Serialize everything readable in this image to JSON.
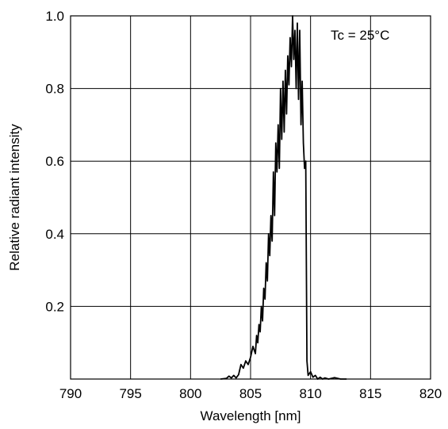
{
  "chart_data": {
    "type": "line",
    "title": "",
    "xlabel": "Wavelength [nm]",
    "ylabel": "Relative radiant intensity",
    "annotation": "Tc = 25°C",
    "xlim": [
      790,
      820
    ],
    "ylim": [
      0,
      1.0
    ],
    "xticks": [
      790,
      795,
      800,
      805,
      810,
      815,
      820
    ],
    "yticks": [
      0.2,
      0.4,
      0.6,
      0.8,
      1.0
    ],
    "xtick_labels": [
      "790",
      "795",
      "800",
      "805",
      "810",
      "815",
      "820"
    ],
    "ytick_labels": [
      "0.2",
      "0.4",
      "0.6",
      "0.8",
      "1.0"
    ],
    "grid": true,
    "colors": {
      "line": "#000000",
      "grid": "#000000",
      "background": "#ffffff"
    },
    "series": [
      {
        "x": [
          802.5,
          803.0,
          803.2,
          803.4,
          803.6,
          803.8,
          804.0,
          804.2,
          804.4,
          804.6,
          804.8,
          805.0,
          805.2,
          805.4,
          805.5,
          805.6,
          805.7,
          805.8,
          805.9,
          806.0,
          806.1,
          806.2,
          806.3,
          806.4,
          806.5,
          806.6,
          806.7,
          806.8,
          806.9,
          807.0,
          807.1,
          807.2,
          807.3,
          807.4,
          807.5,
          807.6,
          807.7,
          807.8,
          807.9,
          808.0,
          808.1,
          808.2,
          808.3,
          808.4,
          808.5,
          808.6,
          808.7,
          808.8,
          808.9,
          809.0,
          809.1,
          809.2,
          809.3,
          809.4,
          809.5,
          809.6,
          809.7,
          809.8,
          810.0,
          810.2,
          810.4,
          810.6,
          810.8,
          811.0,
          811.2,
          811.5,
          812.0,
          812.5,
          813.0
        ],
        "y": [
          0.0,
          0.002,
          0.008,
          0.003,
          0.01,
          0.003,
          0.012,
          0.04,
          0.03,
          0.05,
          0.04,
          0.06,
          0.09,
          0.07,
          0.12,
          0.1,
          0.15,
          0.13,
          0.2,
          0.16,
          0.25,
          0.22,
          0.32,
          0.27,
          0.4,
          0.34,
          0.45,
          0.38,
          0.57,
          0.45,
          0.65,
          0.57,
          0.7,
          0.58,
          0.8,
          0.66,
          0.82,
          0.68,
          0.85,
          0.73,
          0.89,
          0.81,
          0.94,
          0.86,
          1.0,
          0.88,
          0.96,
          0.8,
          0.98,
          0.77,
          0.96,
          0.7,
          0.82,
          0.65,
          0.58,
          0.6,
          0.05,
          0.01,
          0.02,
          0.005,
          0.01,
          0.0,
          0.005,
          0.0,
          0.003,
          0.0,
          0.004,
          0.0,
          0.0
        ]
      }
    ]
  }
}
